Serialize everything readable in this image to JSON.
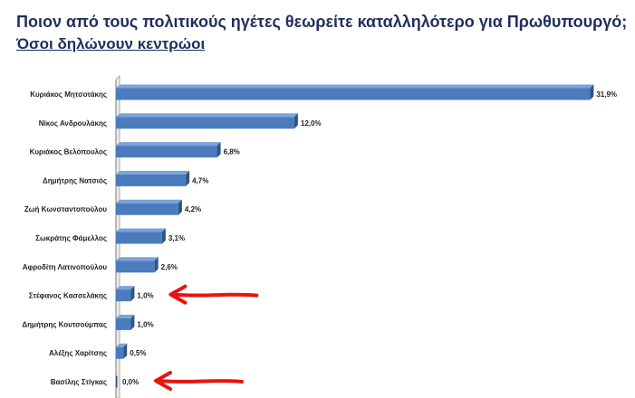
{
  "header": {
    "title": "Ποιον από τους πολιτικούς ηγέτες θεωρείτε καταλληλότερο για Πρωθυπουργό;",
    "subtitle": "Όσοι δηλώνουν κεντρώοι"
  },
  "colors": {
    "bar": "#4a7bbd",
    "bar_top": "#7aa3d8",
    "bar_side": "#2e5483",
    "arrow": "#e8140f",
    "title": "#1f2f5c"
  },
  "chart_data": {
    "type": "bar",
    "orientation": "horizontal",
    "categories": [
      "Κυριάκος Μητσοτάκης",
      "Νίκος Ανδρουλάκης",
      "Κυριάκος Βελόπουλος",
      "Δημήτρης Νατσιός",
      "Ζωή Κωνσταντοπούλου",
      "Σωκράτης Φάμελλος",
      "Αφροδίτη Λατινοπούλου",
      "Στέφανος Κασσελάκης",
      "Δημήτρης Κουτσούμπας",
      "Αλέξης Χαρίτσης",
      "Βασίλης Στίγκας"
    ],
    "values": [
      31.9,
      12.0,
      6.8,
      4.7,
      4.2,
      3.1,
      2.6,
      1.0,
      1.0,
      0.5,
      0.0
    ],
    "value_labels": [
      "31,9%",
      "12,0%",
      "6,8%",
      "4,7%",
      "4,2%",
      "3,1%",
      "2,6%",
      "1,0%",
      "1,0%",
      "0,5%",
      "0,0%"
    ],
    "xlim": [
      0,
      32
    ],
    "grid": false,
    "legend": "none",
    "annotations": [
      {
        "type": "arrow",
        "target_category": "Στέφανος Κασσελάκης"
      },
      {
        "type": "arrow",
        "target_category": "Βασίλης Στίγκας"
      }
    ]
  }
}
